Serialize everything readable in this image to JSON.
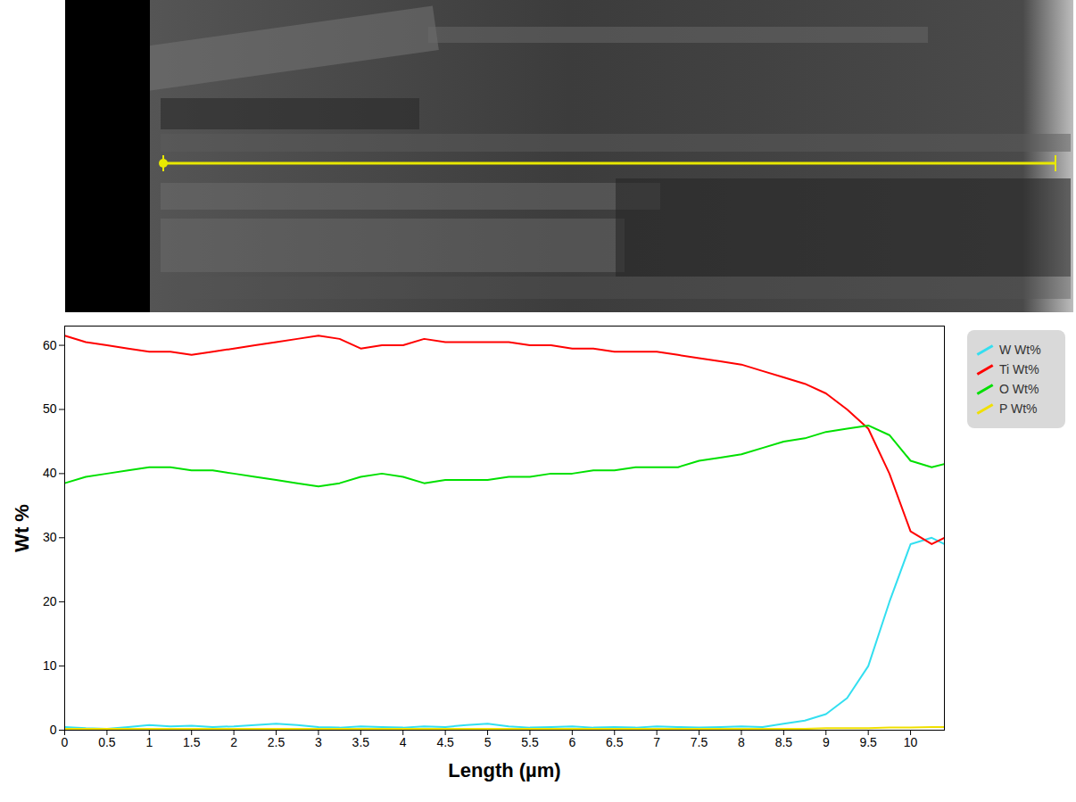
{
  "chart_data": {
    "type": "line",
    "xlabel": "Length (µm)",
    "ylabel": "Wt %",
    "x": [
      0,
      0.25,
      0.5,
      0.75,
      1,
      1.25,
      1.5,
      1.75,
      2,
      2.25,
      2.5,
      2.75,
      3,
      3.25,
      3.5,
      3.75,
      4,
      4.25,
      4.5,
      4.75,
      5,
      5.25,
      5.5,
      5.75,
      6,
      6.25,
      6.5,
      6.75,
      7,
      7.25,
      7.5,
      7.75,
      8,
      8.25,
      8.5,
      8.75,
      9,
      9.25,
      9.5,
      9.75,
      10,
      10.25,
      10.4
    ],
    "series": [
      {
        "name": "W Wt%",
        "color": "#33dff0",
        "values": [
          0.5,
          0.3,
          0.2,
          0.5,
          0.8,
          0.6,
          0.7,
          0.5,
          0.6,
          0.8,
          1,
          0.8,
          0.5,
          0.4,
          0.6,
          0.5,
          0.4,
          0.6,
          0.5,
          0.8,
          1,
          0.6,
          0.4,
          0.5,
          0.6,
          0.4,
          0.5,
          0.4,
          0.6,
          0.5,
          0.4,
          0.5,
          0.6,
          0.5,
          1,
          1.5,
          2.5,
          5,
          10,
          20,
          29,
          30,
          29
        ]
      },
      {
        "name": "Ti Wt%",
        "color": "#ff0000",
        "values": [
          61.5,
          60.5,
          60,
          59.5,
          59,
          59,
          58.5,
          59,
          59.5,
          60,
          60.5,
          61,
          61.5,
          61,
          59.5,
          60,
          60,
          61,
          60.5,
          60.5,
          60.5,
          60.5,
          60,
          60,
          59.5,
          59.5,
          59,
          59,
          59,
          58.5,
          58,
          57.5,
          57,
          56,
          55,
          54,
          52.5,
          50,
          47,
          40,
          31,
          29,
          30
        ]
      },
      {
        "name": "O Wt%",
        "color": "#00e000",
        "values": [
          38.5,
          39.5,
          40,
          40.5,
          41,
          41,
          40.5,
          40.5,
          40,
          39.5,
          39,
          38.5,
          38,
          38.5,
          39.5,
          40,
          39.5,
          38.5,
          39,
          39,
          39,
          39.5,
          39.5,
          40,
          40,
          40.5,
          40.5,
          41,
          41,
          41,
          42,
          42.5,
          43,
          44,
          45,
          45.5,
          46.5,
          47,
          47.5,
          46,
          42,
          41,
          41.5
        ]
      },
      {
        "name": "P Wt%",
        "color": "#f0e000",
        "values": [
          0.2,
          0.2,
          0.2,
          0.2,
          0.2,
          0.2,
          0.2,
          0.2,
          0.2,
          0.2,
          0.2,
          0.2,
          0.2,
          0.2,
          0.2,
          0.2,
          0.2,
          0.2,
          0.2,
          0.2,
          0.2,
          0.2,
          0.2,
          0.2,
          0.2,
          0.2,
          0.2,
          0.2,
          0.2,
          0.2,
          0.2,
          0.2,
          0.2,
          0.2,
          0.2,
          0.2,
          0.3,
          0.3,
          0.3,
          0.4,
          0.4,
          0.5,
          0.5
        ]
      }
    ],
    "xlim": [
      0,
      10.4
    ],
    "xticks": [
      0,
      0.5,
      1,
      1.5,
      2,
      2.5,
      3,
      3.5,
      4,
      4.5,
      5,
      5.5,
      6,
      6.5,
      7,
      7.5,
      8,
      8.5,
      9,
      9.5,
      10
    ],
    "ylim": [
      0,
      63
    ],
    "yticks": [
      0,
      10,
      20,
      30,
      40,
      50,
      60
    ],
    "grid": false,
    "legend": "right"
  }
}
